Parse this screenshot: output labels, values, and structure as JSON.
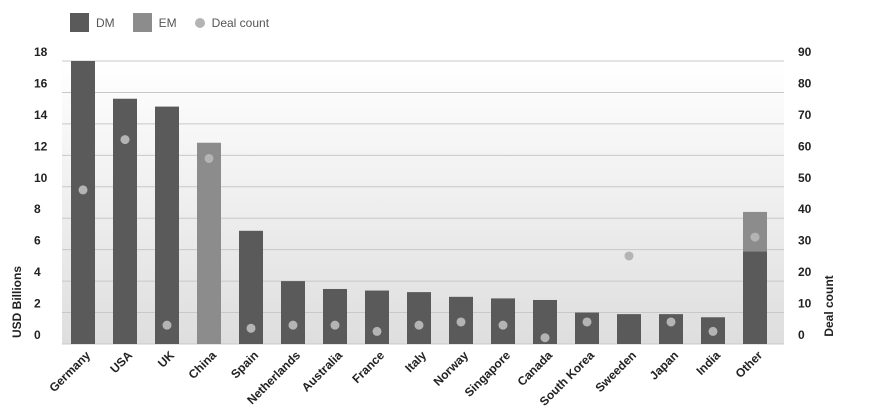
{
  "chart_data": {
    "type": "bar",
    "stacked": true,
    "categories": [
      "Germany",
      "USA",
      "UK",
      "China",
      "Spain",
      "Netherlands",
      "Australia",
      "France",
      "Italy",
      "Norway",
      "Singapore",
      "Canada",
      "South Korea",
      "Sweeden",
      "Japan",
      "India",
      "Other"
    ],
    "series": [
      {
        "name": "DM",
        "axis": "left",
        "color": "#5a5a5a",
        "values": [
          18.0,
          15.6,
          15.1,
          0,
          7.2,
          4.0,
          3.5,
          3.4,
          3.3,
          3.0,
          2.9,
          2.8,
          2.0,
          1.9,
          1.9,
          1.7,
          5.9
        ]
      },
      {
        "name": "EM",
        "axis": "left",
        "color": "#8c8c8c",
        "values": [
          0,
          0,
          0,
          12.8,
          0,
          0,
          0,
          0,
          0,
          0,
          0,
          0,
          0,
          0,
          0,
          0,
          2.5
        ]
      },
      {
        "name": "Deal count",
        "axis": "right",
        "type": "scatter",
        "color": "#b4b4b4",
        "values": [
          49,
          65,
          6,
          59,
          5,
          6,
          6,
          4,
          6,
          7,
          6,
          2,
          7,
          28,
          7,
          4,
          34
        ]
      }
    ],
    "ylabel": "USD Billions",
    "y2label": "Deal count",
    "ylim": [
      0,
      18
    ],
    "y2lim": [
      0,
      90
    ],
    "yticks": [
      "0",
      "2",
      "4",
      "6",
      "8",
      "10",
      "12",
      "14",
      "16",
      "18"
    ],
    "y2ticks": [
      "0",
      "10",
      "20",
      "30",
      "40",
      "50",
      "60",
      "70",
      "80",
      "90"
    ],
    "grid": true,
    "legend_position": "top-left"
  },
  "legend": {
    "dm": "DM",
    "em": "EM",
    "deal_count": "Deal count"
  }
}
